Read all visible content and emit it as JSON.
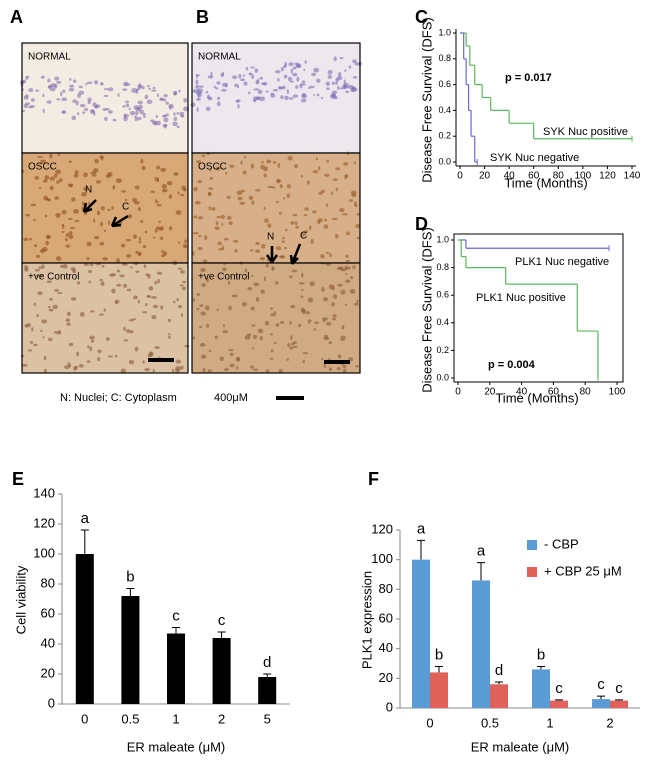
{
  "panel_labels": [
    "A",
    "B",
    "C",
    "D",
    "E",
    "F"
  ],
  "micrographs": [
    {
      "labels": [
        "NORMAL",
        "OSCC",
        "+ve Control"
      ],
      "arrows": [
        "N",
        "C"
      ]
    },
    {
      "labels": [
        "NORMAL",
        "OSCC",
        "+ve Control"
      ],
      "arrows": [
        "N",
        "C"
      ]
    }
  ],
  "caption": "N: Nuclei; C: Cytoplasm",
  "scale_label": "400μM",
  "chart_data": [
    {
      "type": "survival",
      "xlabel": "Time (Months)",
      "ylabel": "Disease Free Survival (DFS)",
      "xlim": [
        0,
        140
      ],
      "xticks": [
        0,
        20,
        40,
        60,
        80,
        100,
        120,
        140
      ],
      "ylim": [
        0,
        1
      ],
      "yticks": [
        {
          "value": 0,
          "label": "0.0"
        },
        {
          "value": 0.2,
          "label": "0.2"
        },
        {
          "value": 0.4,
          "label": "0.4"
        },
        {
          "value": 0.6,
          "label": "0.6"
        },
        {
          "value": 0.8,
          "label": "0.8"
        },
        {
          "value": 1,
          "label": "1.0"
        }
      ],
      "annotations": [
        "p = 0.017"
      ],
      "series": [
        {
          "name": "SYK Nuc positive",
          "color": "#5cb85c",
          "x": [
            0,
            5,
            8,
            12,
            18,
            25,
            40,
            60,
            140
          ],
          "values": [
            1,
            0.9,
            0.75,
            0.6,
            0.5,
            0.4,
            0.3,
            0.18,
            0.18
          ]
        },
        {
          "name": "SYK Nuc negative",
          "color": "#6a6ad0",
          "x": [
            0,
            3,
            5,
            7,
            9,
            12,
            14
          ],
          "values": [
            1,
            0.8,
            0.6,
            0.4,
            0.2,
            0,
            0
          ]
        }
      ]
    },
    {
      "type": "survival",
      "xlabel": "Time (Months)",
      "ylabel": "Disease Free Survival (DFS)",
      "xlim": [
        0,
        100
      ],
      "xticks": [
        0,
        20,
        40,
        60,
        80,
        100
      ],
      "ylim": [
        0,
        1
      ],
      "yticks": [
        {
          "value": 0,
          "label": "0.0"
        },
        {
          "value": 0.2,
          "label": "0.2"
        },
        {
          "value": 0.4,
          "label": "0.4"
        },
        {
          "value": 0.6,
          "label": "0.6"
        },
        {
          "value": 0.8,
          "label": "0.8"
        },
        {
          "value": 1,
          "label": "1.0"
        }
      ],
      "annotations": [
        "p = 0.004"
      ],
      "series": [
        {
          "name": "PLK1 Nuc negative",
          "color": "#6a6ad0",
          "x": [
            0,
            5,
            95
          ],
          "values": [
            1,
            0.94,
            0.94
          ]
        },
        {
          "name": "PLK1 Nuc positive",
          "color": "#5cb85c",
          "x": [
            0,
            2,
            5,
            30,
            75,
            88
          ],
          "values": [
            1,
            0.88,
            0.8,
            0.68,
            0.34,
            0
          ]
        }
      ]
    },
    {
      "type": "bar",
      "xlabel": "ER maleate (μM)",
      "ylabel": "Cell viability",
      "categories": [
        "0",
        "0.5",
        "1",
        "2",
        "5"
      ],
      "ylim": [
        0,
        140
      ],
      "yticks": [
        0,
        20,
        40,
        60,
        80,
        100,
        120,
        140
      ],
      "series": [
        {
          "name": null,
          "color": "#000000",
          "values": [
            100,
            72,
            47,
            44,
            18
          ],
          "errors": [
            16,
            5,
            4,
            4,
            2
          ],
          "sig_labels": [
            "a",
            "b",
            "c",
            "c",
            "d"
          ]
        }
      ]
    },
    {
      "type": "bar",
      "xlabel": "ER maleate (μM)",
      "ylabel": "PLK1 expression",
      "categories": [
        "0",
        "0.5",
        "1",
        "2"
      ],
      "ylim": [
        0,
        120
      ],
      "yticks": [
        0,
        20,
        40,
        60,
        80,
        100,
        120
      ],
      "series": [
        {
          "name": "- CBP",
          "color": "#5b9bd5",
          "values": [
            100,
            86,
            26,
            6
          ],
          "errors": [
            13,
            12,
            2,
            2
          ],
          "sig_labels": [
            "a",
            "a",
            "b",
            "c"
          ]
        },
        {
          "name": "+ CBP 25 μM",
          "color": "#e0605a",
          "values": [
            24,
            16,
            5,
            5
          ],
          "errors": [
            4,
            1.5,
            0.5,
            0.5
          ],
          "sig_labels": [
            "b",
            "d",
            "c",
            "c"
          ]
        }
      ]
    }
  ]
}
